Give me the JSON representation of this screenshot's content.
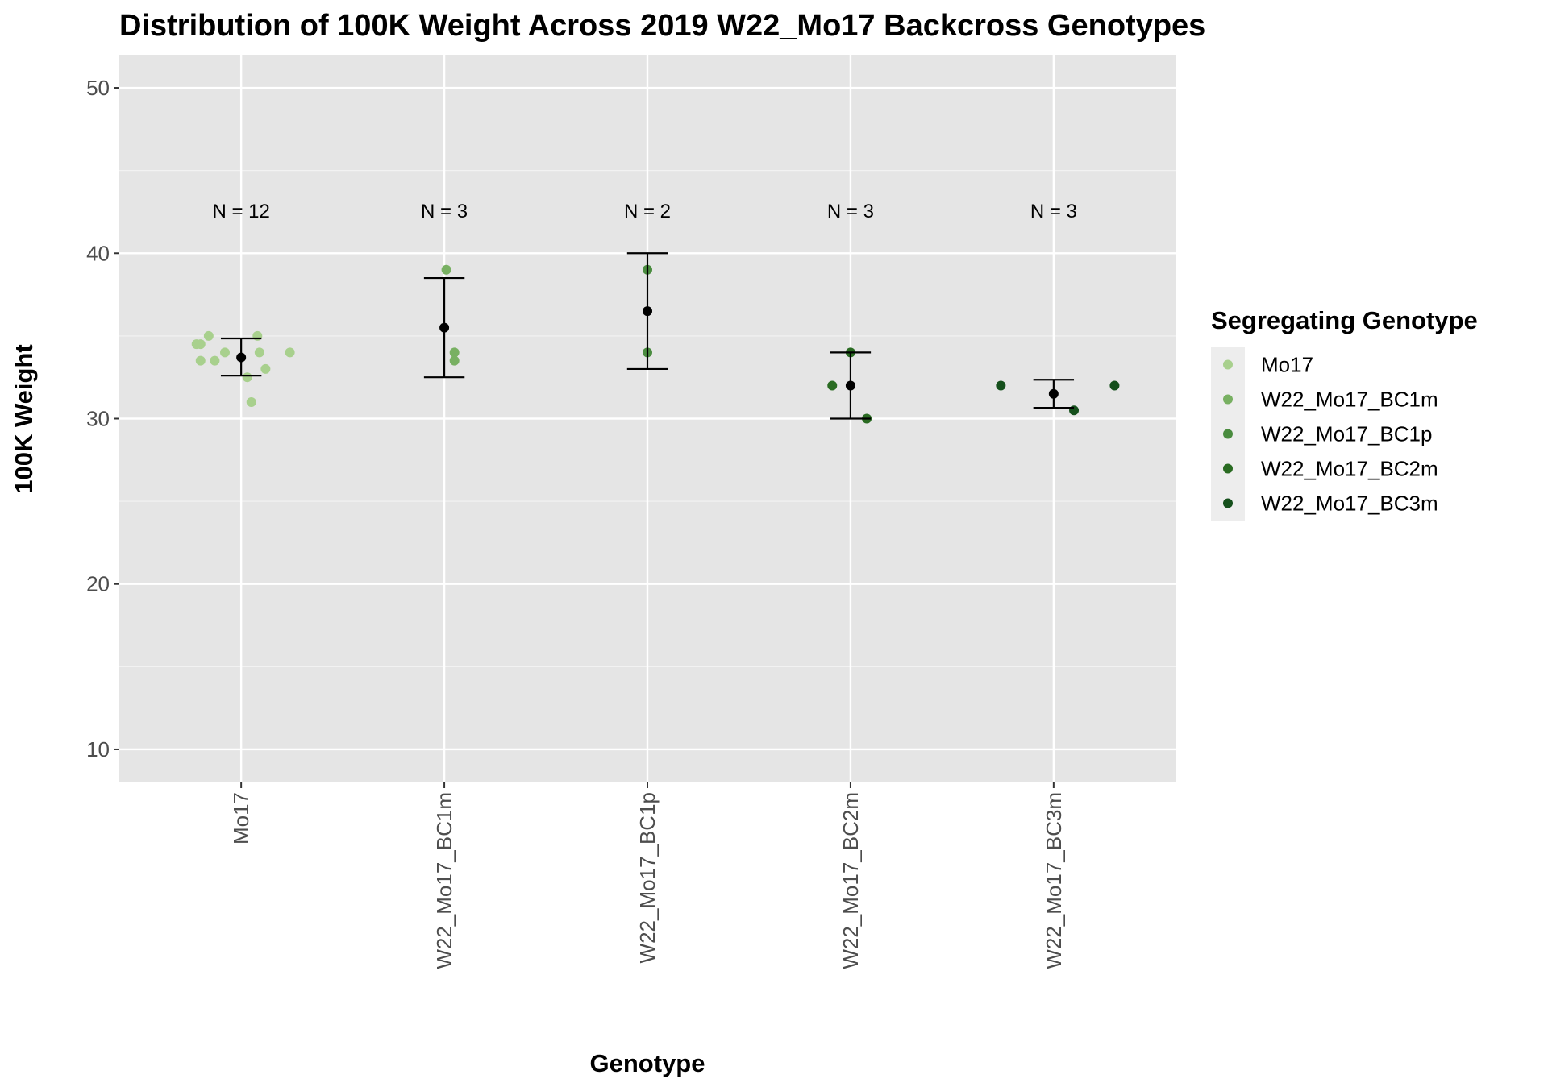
{
  "chart_data": {
    "type": "scatter",
    "title": "Distribution of 100K Weight Across 2019 W22_Mo17 Backcross Genotypes",
    "xlabel": "Genotype",
    "ylabel": "100K Weight",
    "ylim": [
      8,
      52
    ],
    "yticks": [
      10,
      20,
      30,
      40,
      50
    ],
    "grid": true,
    "legend": {
      "title": "Segregating Genotype",
      "placement": "right",
      "entries": [
        "Mo17",
        "W22_Mo17_BC1m",
        "W22_Mo17_BC1p",
        "W22_Mo17_BC2m",
        "W22_Mo17_BC3m"
      ]
    },
    "categories": [
      "Mo17",
      "W22_Mo17_BC1m",
      "W22_Mo17_BC1p",
      "W22_Mo17_BC2m",
      "W22_Mo17_BC3m"
    ],
    "colors": [
      "#a8d08d",
      "#78b062",
      "#4a8c3f",
      "#2a6b22",
      "#15501c"
    ],
    "summary_color": "#000000",
    "series": [
      {
        "name": "Mo17",
        "n_label": "N = 12",
        "points": [
          {
            "x_offset": -0.22,
            "y": 34.5
          },
          {
            "x_offset": -0.2,
            "y": 34.5
          },
          {
            "x_offset": -0.16,
            "y": 35.0
          },
          {
            "x_offset": -0.2,
            "y": 33.5
          },
          {
            "x_offset": -0.13,
            "y": 33.5
          },
          {
            "x_offset": -0.08,
            "y": 34.0
          },
          {
            "x_offset": 0.03,
            "y": 32.5
          },
          {
            "x_offset": 0.05,
            "y": 31.0
          },
          {
            "x_offset": 0.08,
            "y": 35.0
          },
          {
            "x_offset": 0.09,
            "y": 34.0
          },
          {
            "x_offset": 0.12,
            "y": 33.0
          },
          {
            "x_offset": 0.24,
            "y": 34.0
          }
        ],
        "mean": 33.7,
        "lower": 32.6,
        "upper": 34.85
      },
      {
        "name": "W22_Mo17_BC1m",
        "n_label": "N = 3",
        "points": [
          {
            "x_offset": 0.01,
            "y": 39.0
          },
          {
            "x_offset": 0.05,
            "y": 34.0
          },
          {
            "x_offset": 0.05,
            "y": 33.5
          }
        ],
        "mean": 35.5,
        "lower": 32.5,
        "upper": 38.5
      },
      {
        "name": "W22_Mo17_BC1p",
        "n_label": "N = 2",
        "points": [
          {
            "x_offset": 0.0,
            "y": 39.0
          },
          {
            "x_offset": 0.0,
            "y": 34.0
          }
        ],
        "mean": 36.5,
        "lower": 33.0,
        "upper": 40.0
      },
      {
        "name": "W22_Mo17_BC2m",
        "n_label": "N = 3",
        "points": [
          {
            "x_offset": -0.09,
            "y": 32.0
          },
          {
            "x_offset": 0.0,
            "y": 34.0
          },
          {
            "x_offset": 0.08,
            "y": 30.0
          }
        ],
        "mean": 32.0,
        "lower": 30.0,
        "upper": 34.0
      },
      {
        "name": "W22_Mo17_BC3m",
        "n_label": "N = 3",
        "points": [
          {
            "x_offset": -0.26,
            "y": 32.0
          },
          {
            "x_offset": 0.1,
            "y": 30.5
          },
          {
            "x_offset": 0.3,
            "y": 32.0
          }
        ],
        "mean": 31.5,
        "lower": 30.65,
        "upper": 32.35
      }
    ],
    "n_label_y": 42.6
  }
}
